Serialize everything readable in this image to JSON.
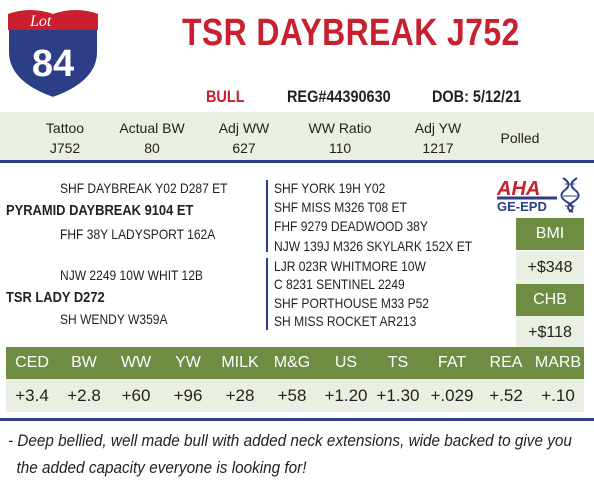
{
  "lot": {
    "label": "Lot",
    "number": "84"
  },
  "animal": {
    "name": "TSR DAYBREAK J752",
    "sex": "BULL",
    "reg": "REG#44390630",
    "dob": "DOB: 5/12/21"
  },
  "info": [
    {
      "label": "Tattoo",
      "value": "J752"
    },
    {
      "label": "Actual BW",
      "value": "80"
    },
    {
      "label": "Adj WW",
      "value": "627"
    },
    {
      "label": "WW Ratio",
      "value": "110"
    },
    {
      "label": "Adj YW",
      "value": "1217"
    },
    {
      "label": "Polled",
      "value": ""
    }
  ],
  "pedigree": {
    "sire": "PYRAMID DAYBREAK 9104 ET",
    "sire_sire": "SHF DAYBREAK Y02 D287 ET",
    "sire_dam": "FHF 38Y LADYSPORT 162A",
    "dam": "TSR LADY D272",
    "dam_sire": "NJW 2249 10W WHIT 12B",
    "dam_dam": "SH WENDY W359A",
    "ss_sire": "SHF YORK 19H Y02",
    "ss_dam": "SHF MISS M326 T08 ET",
    "sd_sire": "FHF 9279 DEADWOOD 38Y",
    "sd_dam": "NJW 139J M326 SKYLARK 152X ET",
    "ds_sire": "LJR 023R WHITMORE 10W",
    "ds_dam": "C 8231 SENTINEL 2249",
    "dd_sire": "SHF PORTHOUSE M33 P52",
    "dd_dam": "SH MISS ROCKET AR213"
  },
  "logo": {
    "text_top": "AHA",
    "text_bottom": "GE-EPD"
  },
  "indexes": [
    {
      "label": "BMI",
      "value": "+$348"
    },
    {
      "label": "CHB",
      "value": "+$118"
    }
  ],
  "epd": {
    "headers": [
      "CED",
      "BW",
      "WW",
      "YW",
      "MILK",
      "M&G",
      "US",
      "TS",
      "FAT",
      "REA",
      "MARB"
    ],
    "values": [
      "+3.4",
      "+2.8",
      "+60",
      "+96",
      "+28",
      "+58",
      "+1.20",
      "+1.30",
      "+.029",
      "+.52",
      "+.10"
    ]
  },
  "comment_lines": [
    "- Deep bellied, well made bull with added neck extensions, wide backed to give you",
    "  the added capacity everyone is looking for!"
  ],
  "colors": {
    "red": "#c8202f",
    "navy": "#2b3e87",
    "green": "#6e8d43",
    "light": "#eaefe3"
  }
}
